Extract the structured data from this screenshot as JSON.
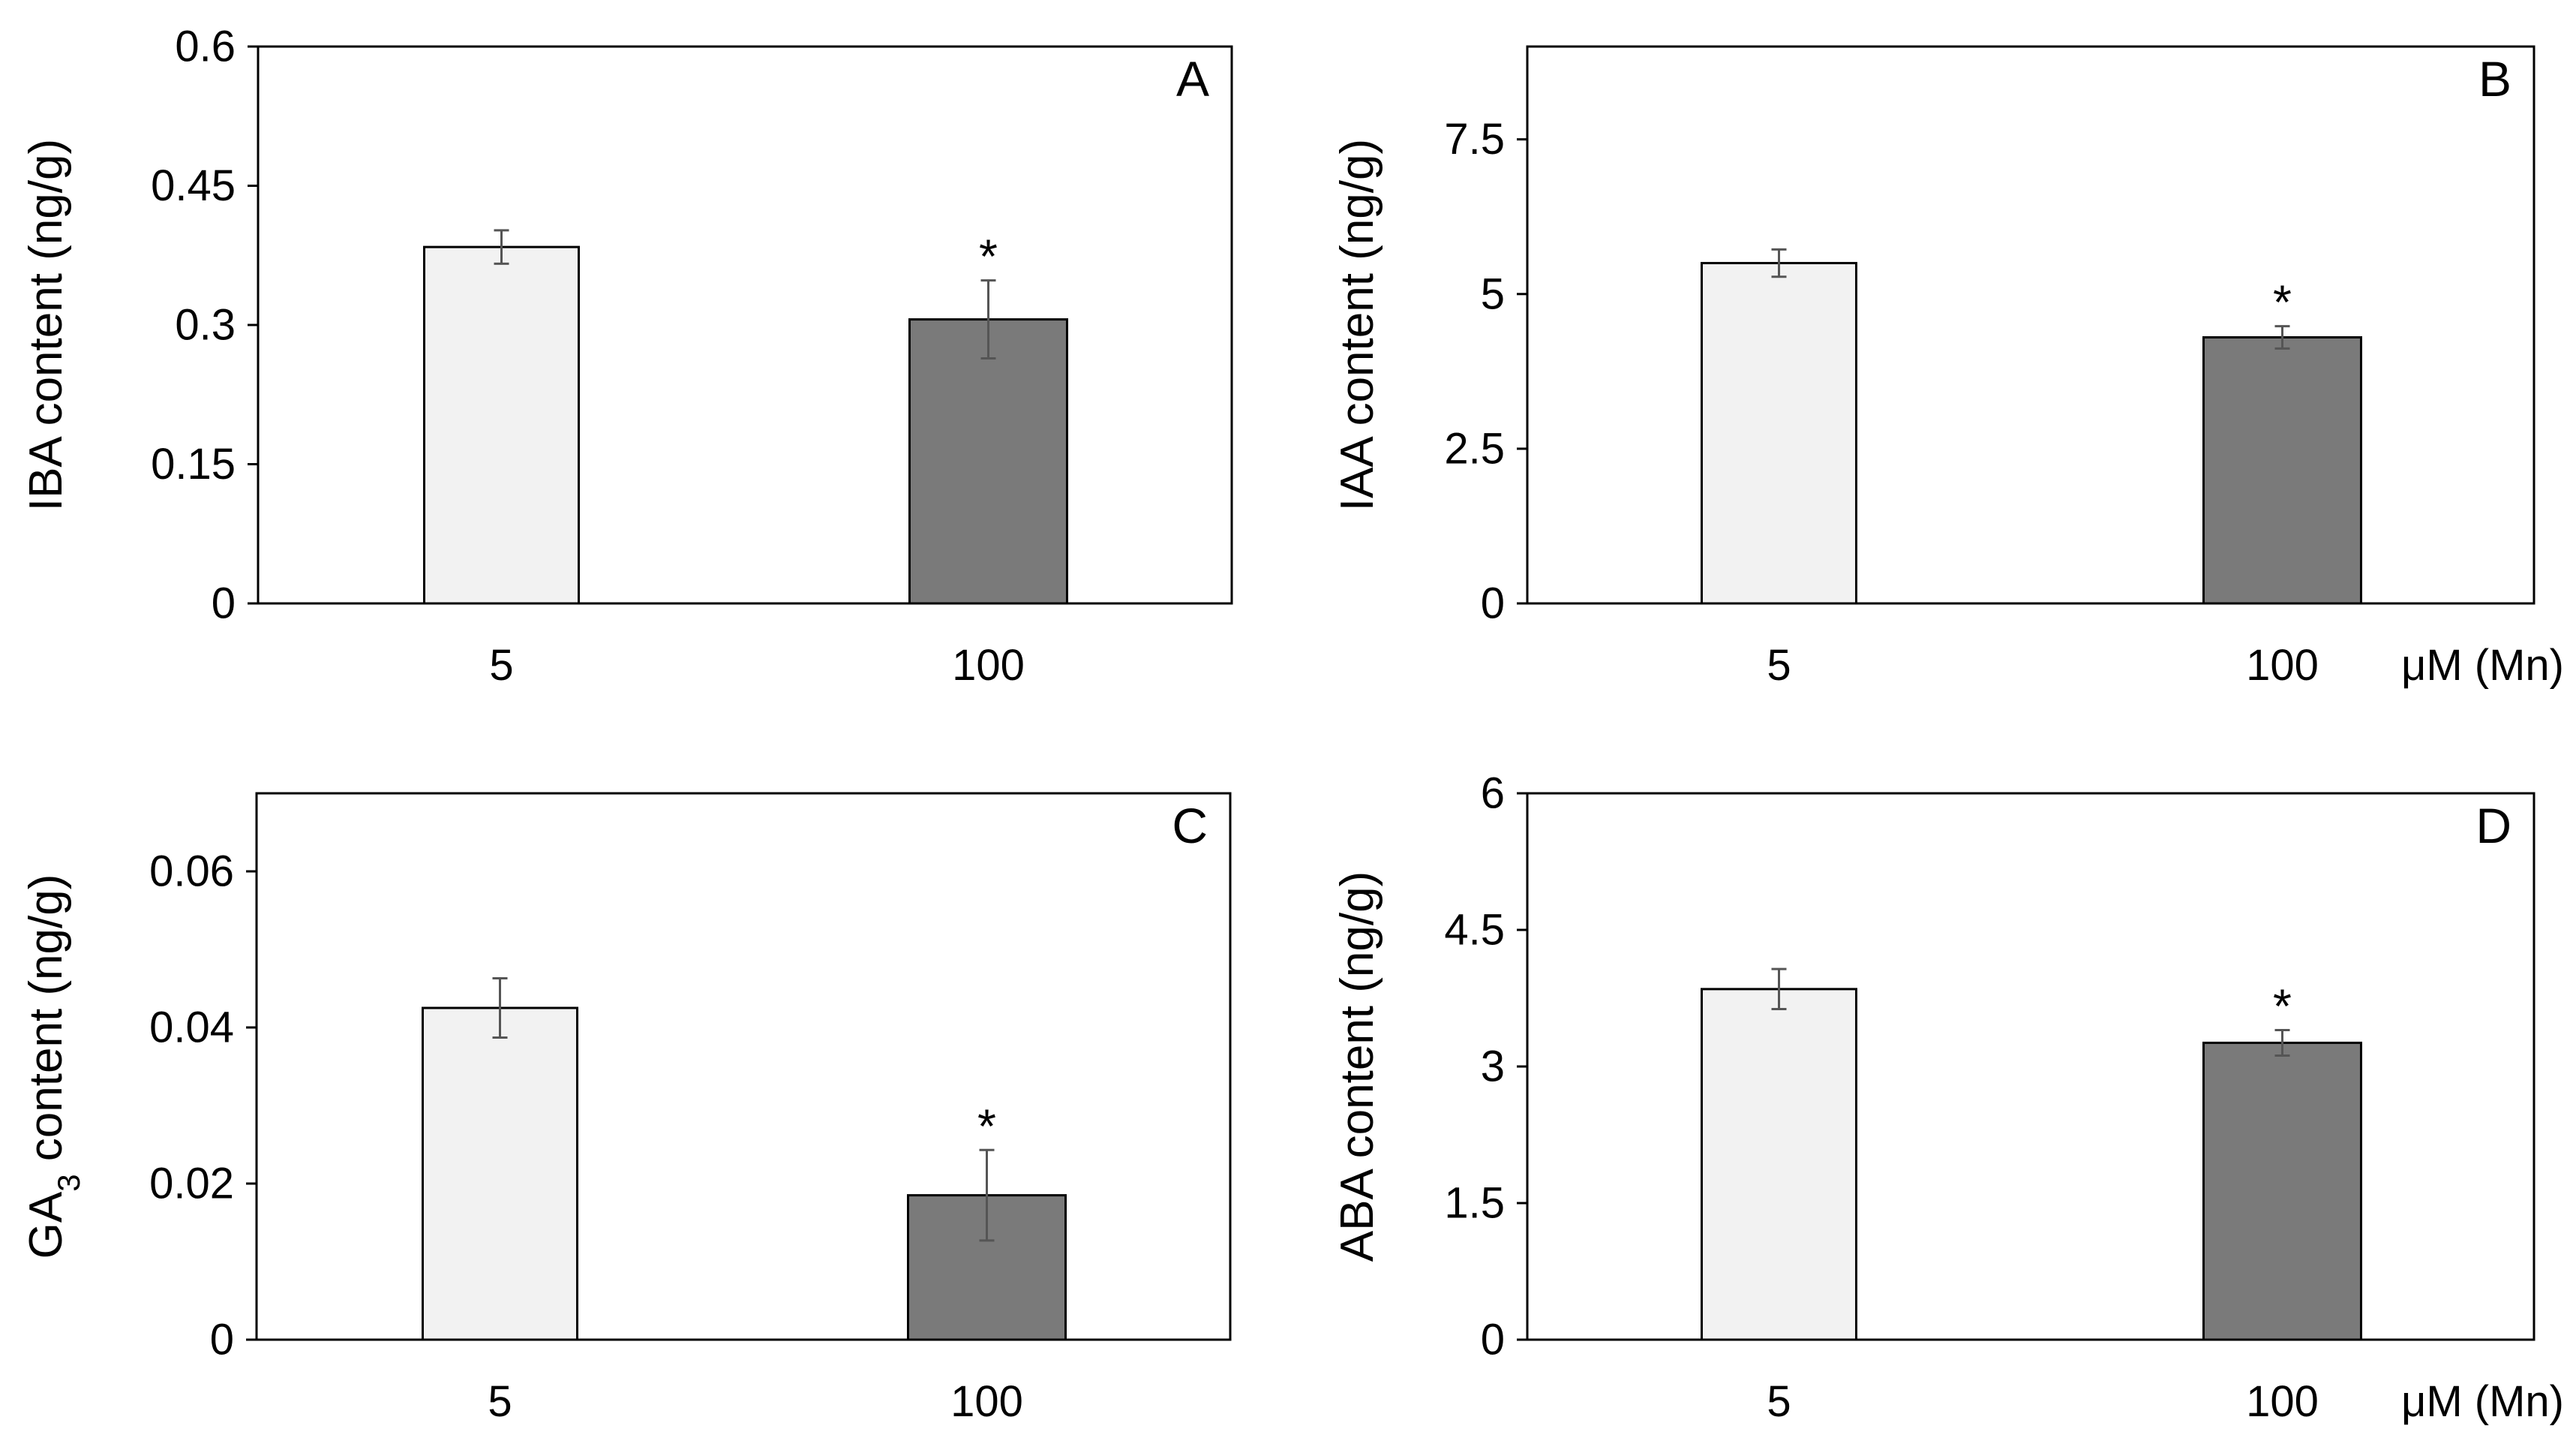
{
  "figure": {
    "unit_label": "μM (Mn)"
  },
  "chart_data": [
    {
      "type": "bar",
      "panel": "A",
      "ylabel": "IBA content (ng/g)",
      "categories": [
        "5",
        "100"
      ],
      "values": [
        0.384,
        0.306
      ],
      "errors": [
        0.018,
        0.042
      ],
      "significance": [
        "",
        "*"
      ],
      "bar_colors": [
        "#f2f2f2",
        "#7a7a7a"
      ],
      "ylim": [
        0,
        0.6
      ],
      "yticks": [
        0,
        0.15,
        0.3,
        0.45,
        0.6
      ],
      "ytick_labels": [
        "0",
        "0.15",
        "0.3",
        "0.45",
        "0.6"
      ],
      "show_unit_label": false
    },
    {
      "type": "bar",
      "panel": "B",
      "ylabel": "IAA content (ng/g)",
      "categories": [
        "5",
        "100"
      ],
      "values": [
        5.5,
        4.3
      ],
      "errors": [
        0.22,
        0.18
      ],
      "significance": [
        "",
        "*"
      ],
      "bar_colors": [
        "#f2f2f2",
        "#7a7a7a"
      ],
      "ylim": [
        0,
        9
      ],
      "yticks": [
        0,
        2.5,
        5,
        7.5
      ],
      "ytick_labels": [
        "0",
        "2.5",
        "5",
        "7.5"
      ],
      "show_unit_label": true
    },
    {
      "type": "bar",
      "panel": "C",
      "ylabel": "GA3 content (ng/g)",
      "ylabel_parts": {
        "main": "GA",
        "sub": "3",
        "rest": " content (ng/g)"
      },
      "categories": [
        "5",
        "100"
      ],
      "values": [
        0.0425,
        0.0185
      ],
      "errors": [
        0.0038,
        0.0058
      ],
      "significance": [
        "",
        "*"
      ],
      "bar_colors": [
        "#f2f2f2",
        "#7a7a7a"
      ],
      "ylim": [
        0,
        0.07
      ],
      "yticks": [
        0,
        0.02,
        0.04,
        0.06
      ],
      "ytick_labels": [
        "0",
        "0.02",
        "0.04",
        "0.06"
      ],
      "show_unit_label": false
    },
    {
      "type": "bar",
      "panel": "D",
      "ylabel": "ABA content (ng/g)",
      "categories": [
        "5",
        "100"
      ],
      "values": [
        3.85,
        3.26
      ],
      "errors": [
        0.22,
        0.14
      ],
      "significance": [
        "",
        "*"
      ],
      "bar_colors": [
        "#f2f2f2",
        "#7a7a7a"
      ],
      "ylim": [
        0,
        6
      ],
      "yticks": [
        0,
        1.5,
        3,
        4.5,
        6
      ],
      "ytick_labels": [
        "0",
        "1.5",
        "3",
        "4.5",
        "6"
      ],
      "show_unit_label": true
    }
  ]
}
